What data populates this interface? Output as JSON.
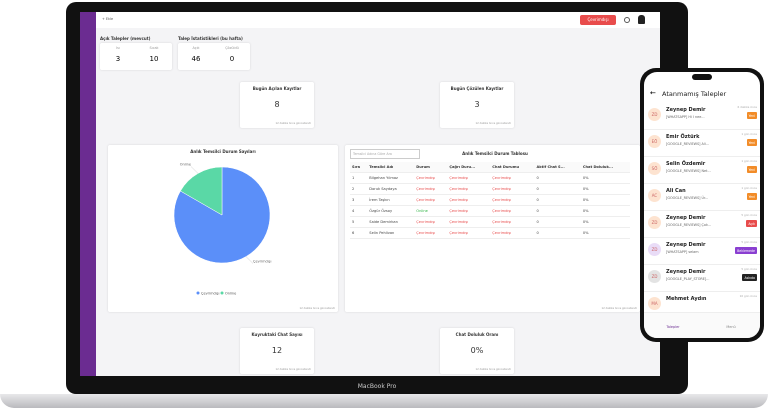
{
  "topbar": {
    "add": "+ Ekle",
    "status": "Çevrimdışı"
  },
  "open_requests": {
    "title": "Açık Talepler (mevcut)",
    "stats": [
      {
        "label": "Isı",
        "value": 3
      },
      {
        "label": "Sıcak",
        "value": 10
      }
    ]
  },
  "request_stats": {
    "title": "Talep İstatistikleri (bu hafta)",
    "stats": [
      {
        "label": "Açık",
        "value": 46
      },
      {
        "label": "Çözüldü",
        "value": 0
      }
    ]
  },
  "updated": "12 dakika önce güncellendi",
  "cards": [
    {
      "title": "Bugün Açılan Kayıtlar",
      "value": "8"
    },
    {
      "title": "Bugün Çözülen Kayıtlar",
      "value": "3"
    },
    {
      "title": "Kuyruktaki Chat Sayısı",
      "value": "12"
    },
    {
      "title": "Chat Doluluk Oranı",
      "value": "0%"
    }
  ],
  "chart_data": {
    "type": "pie",
    "title": "Anlık Temsilci Durum Sayıları",
    "categories": [
      "Çevrimdışı",
      "Online"
    ],
    "values": [
      5,
      1
    ],
    "colors": [
      "#5b8ff9",
      "#5ad8a6"
    ]
  },
  "table": {
    "title": "Anlık Temsilci Durum Tablosu",
    "search": "Temsilci Adına Göre Ara",
    "headers": [
      "Sıra",
      "Temsilci Adı",
      "Durum",
      "Çağrı Duru...",
      "Chat Durumu",
      "Aktif Chat S...",
      "Chat Doluluk..."
    ],
    "rows": [
      [
        "1",
        "Bilgehan Yılmaz",
        "Çevrimdışı",
        "Çevrimdışı",
        "Çevrimdışı",
        "0",
        "0%"
      ],
      [
        "2",
        "Doruk Saydaya",
        "Çevrimdışı",
        "Çevrimdışı",
        "Çevrimdışı",
        "0",
        "0%"
      ],
      [
        "3",
        "İrem Taşkın",
        "Çevrimdışı",
        "Çevrimdışı",
        "Çevrimdışı",
        "0",
        "0%"
      ],
      [
        "4",
        "Özgür Özsoy",
        "Online",
        "Çevrimdışı",
        "Çevrimdışı",
        "0",
        "0%"
      ],
      [
        "5",
        "Saide Demirkan",
        "Çevrimdışı",
        "Çevrimdışı",
        "Çevrimdışı",
        "0",
        "0%"
      ],
      [
        "6",
        "Selin Pehlivan",
        "Çevrimdışı",
        "Çevrimdışı",
        "Çevrimdışı",
        "0",
        "0%"
      ]
    ]
  },
  "laptop_label": "MacBook Pro",
  "phone": {
    "title": "Atanmamış Talepler",
    "items": [
      {
        "initials": "ZD",
        "name": "Zeynep Demir",
        "text": "[WHATSAPP] Hi I nee...",
        "time": "6 dakika önce",
        "badge": "Yeni"
      },
      {
        "initials": "EÖ",
        "name": "Emir Öztürk",
        "text": "[GOOGLE_REVIEWS] Ali...",
        "time": "1 gün önce",
        "badge": "Yeni"
      },
      {
        "initials": "SÖ",
        "name": "Selin Özdemir",
        "text": "[GOOGLE_REVIEWS] Net...",
        "time": "1 gün önce",
        "badge": "Yeni"
      },
      {
        "initials": "AC",
        "name": "Ali Can",
        "text": "[GOOGLE_REVIEWS] Ür...",
        "time": "1 gün önce",
        "badge": "Yeni"
      },
      {
        "initials": "ZD",
        "name": "Zeynep Demir",
        "text": "[GOOGLE_REVIEWS] Çok...",
        "time": "5 gün önce",
        "badge": "Açık"
      },
      {
        "initials": "ZD",
        "name": "Zeynep Demir",
        "text": "[WHATSAPP] selam",
        "time": "5 gün önce",
        "badge": "Beklemede"
      },
      {
        "initials": "ZD",
        "name": "Zeynep Demir",
        "text": "[GOOGLE_PLAY_STORE]...",
        "time": "5 gün önce",
        "badge": "Askıda"
      },
      {
        "initials": "MA",
        "name": "Mehmet Aydın",
        "text": "",
        "time": "10 gün önce",
        "badge": ""
      }
    ],
    "nav": [
      "Talepler",
      "Menü"
    ]
  }
}
